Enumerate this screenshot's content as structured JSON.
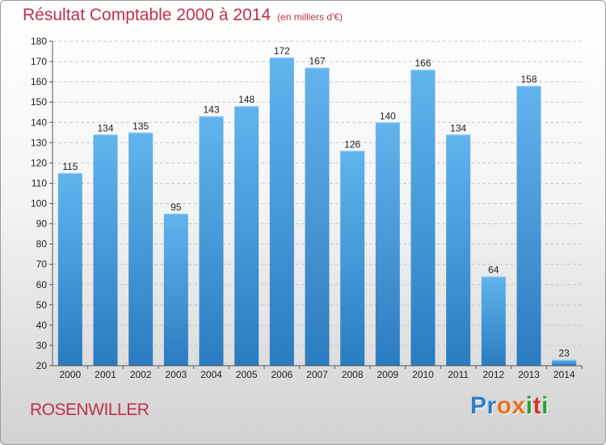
{
  "header": {
    "title": "Résultat Comptable 2000 à 2014",
    "unit": "(en milliers d'€)"
  },
  "footer": {
    "town": "ROSENWILLER",
    "logo_letters": [
      "P",
      "r",
      "o",
      "x",
      "i",
      "t",
      "i"
    ]
  },
  "colors": {
    "title": "#c0304a",
    "bar_top": "#62b4ee",
    "bar_bottom": "#2a7cc0",
    "logo": [
      "#2e7fc1",
      "#2e7fc1",
      "#e8721c",
      "#e8721c",
      "#2e9e3a",
      "#d8302e",
      "#2e9e3a"
    ]
  },
  "chart_data": {
    "type": "bar",
    "title": "Résultat Comptable 2000 à 2014",
    "xlabel": "",
    "ylabel": "",
    "ylim": [
      20,
      180
    ],
    "yticks": [
      20,
      30,
      40,
      50,
      60,
      70,
      80,
      90,
      100,
      110,
      120,
      130,
      140,
      150,
      160,
      170,
      180
    ],
    "grid": true,
    "categories": [
      "2000",
      "2001",
      "2002",
      "2003",
      "2004",
      "2005",
      "2006",
      "2007",
      "2008",
      "2009",
      "2010",
      "2011",
      "2012",
      "2013",
      "2014"
    ],
    "values": [
      115,
      134,
      135,
      95,
      143,
      148,
      172,
      167,
      126,
      140,
      166,
      134,
      64,
      158,
      23
    ]
  }
}
